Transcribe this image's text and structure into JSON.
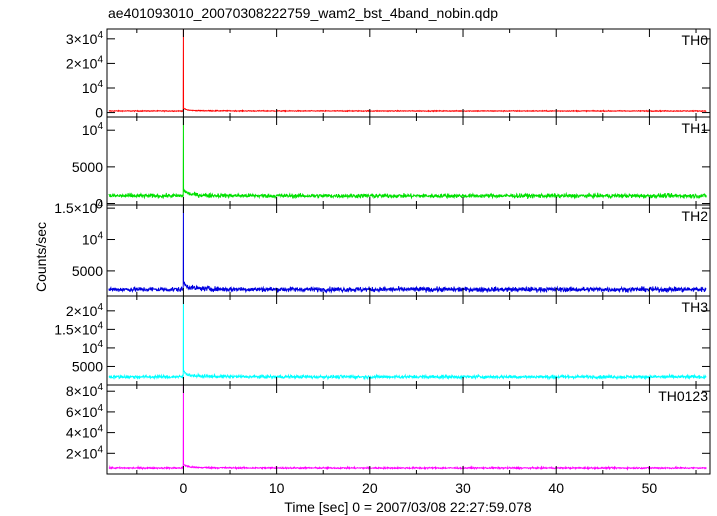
{
  "title": "ae401093010_20070308222759_wam2_bst_4band_nobin.qdp",
  "xlabel": "Time [sec] 0 = 2007/03/08 22:27:59.078",
  "ylabel": "Counts/sec",
  "chart_data": {
    "type": "line",
    "x_ticks": [
      "0",
      "10",
      "20",
      "30",
      "40",
      "50"
    ],
    "x_tick_values": [
      0,
      10,
      20,
      30,
      40,
      50
    ],
    "xlim": [
      -8.2,
      56.5
    ],
    "panels": [
      {
        "name": "TH0",
        "color": "#ff0000",
        "ylim": [
          -1800,
          34000
        ],
        "ticks": [
          {
            "v": 0,
            "m": "0",
            "e": ""
          },
          {
            "v": 10000,
            "m": "10",
            "e": "4"
          },
          {
            "v": 20000,
            "m": "2×10",
            "e": "4"
          },
          {
            "v": 30000,
            "m": "3×10",
            "e": "4"
          }
        ],
        "baseline": 650,
        "noise": 160,
        "peak": 34500,
        "tail_amp": 900,
        "tail_tau": 0.35
      },
      {
        "name": "TH1",
        "color": "#00e000",
        "ylim": [
          -200,
          11800
        ],
        "ticks": [
          {
            "v": 0,
            "m": "0",
            "e": ""
          },
          {
            "v": 5000,
            "m": "5000",
            "e": ""
          },
          {
            "v": 10000,
            "m": "10",
            "e": "4"
          }
        ],
        "baseline": 1050,
        "noise": 280,
        "peak": 12200,
        "tail_amp": 700,
        "tail_tau": 0.4
      },
      {
        "name": "TH2",
        "color": "#0000e0",
        "ylim": [
          1000,
          15500
        ],
        "ticks": [
          {
            "v": 5000,
            "m": "5000",
            "e": ""
          },
          {
            "v": 10000,
            "m": "10",
            "e": "4"
          },
          {
            "v": 15000,
            "m": "1.5×10",
            "e": "4"
          }
        ],
        "baseline": 2050,
        "noise": 380,
        "peak": 16000,
        "tail_amp": 900,
        "tail_tau": 0.4
      },
      {
        "name": "TH3",
        "color": "#00ffff",
        "ylim": [
          0,
          24000
        ],
        "ticks": [
          {
            "v": 5000,
            "m": "5000",
            "e": ""
          },
          {
            "v": 10000,
            "m": "10",
            "e": "4"
          },
          {
            "v": 15000,
            "m": "1.5×10",
            "e": "4"
          },
          {
            "v": 20000,
            "m": "2×10",
            "e": "4"
          }
        ],
        "baseline": 2200,
        "noise": 420,
        "peak": 25000,
        "tail_amp": 1300,
        "tail_tau": 0.4
      },
      {
        "name": "TH0123",
        "color": "#ff00ff",
        "ylim": [
          0,
          86000
        ],
        "ticks": [
          {
            "v": 20000,
            "m": "2×10",
            "e": "4"
          },
          {
            "v": 40000,
            "m": "4×10",
            "e": "4"
          },
          {
            "v": 60000,
            "m": "6×10",
            "e": "4"
          },
          {
            "v": 80000,
            "m": "8×10",
            "e": "4"
          }
        ],
        "baseline": 5800,
        "noise": 700,
        "peak": 87000,
        "tail_amp": 3000,
        "tail_tau": 0.4
      }
    ]
  }
}
